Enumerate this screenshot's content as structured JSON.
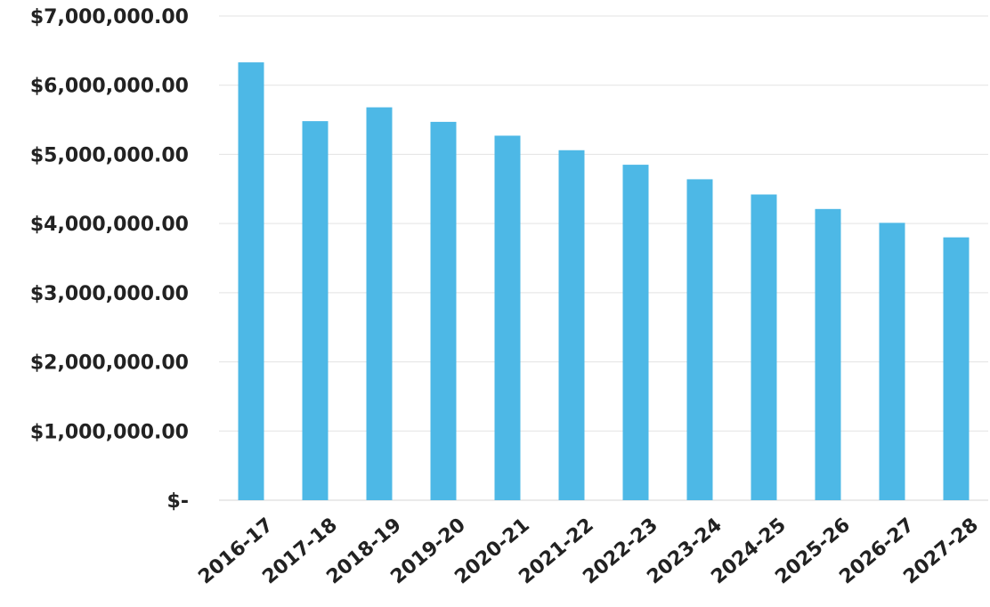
{
  "chart_data": {
    "type": "bar",
    "title": "",
    "xlabel": "",
    "ylabel": "",
    "categories": [
      "2016-17",
      "2017-18",
      "2018-19",
      "2019-20",
      "2020-21",
      "2021-22",
      "2022-23",
      "2023-24",
      "2024-25",
      "2025-26",
      "2026-27",
      "2027-28"
    ],
    "values": [
      6330000,
      5480000,
      5680000,
      5470000,
      5270000,
      5060000,
      4850000,
      4640000,
      4420000,
      4210000,
      4010000,
      3800000
    ],
    "ylim": [
      0,
      7000000
    ],
    "yticks": [
      0,
      1000000,
      2000000,
      3000000,
      4000000,
      5000000,
      6000000,
      7000000
    ],
    "ytick_labels": [
      "$-",
      "$1,000,000.00",
      "$2,000,000.00",
      "$3,000,000.00",
      "$4,000,000.00",
      "$5,000,000.00",
      "$6,000,000.00",
      "$7,000,000.00"
    ],
    "grid": true,
    "legend": "none",
    "bar_color": "#4db8e6"
  }
}
